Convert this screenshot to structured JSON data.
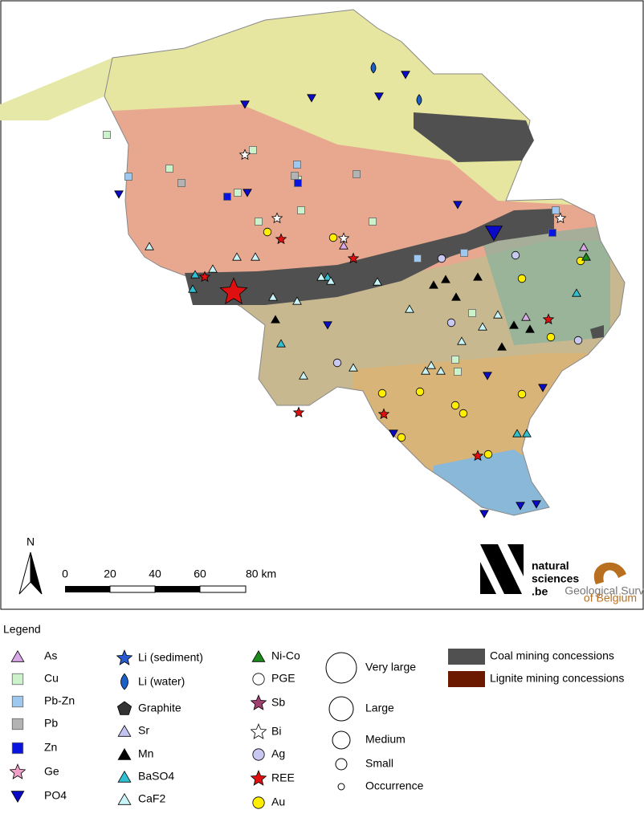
{
  "map": {
    "north": "N",
    "scale_labels": [
      "0",
      "20",
      "40",
      "60",
      "80 km"
    ]
  },
  "logos": {
    "natural_sciences": [
      "natural",
      "sciences",
      ".be"
    ],
    "geological_survey": [
      "Geological Survey",
      "of Belgium"
    ]
  },
  "legend": {
    "title": "Legend",
    "items": [
      {
        "label": "As",
        "symbol": "triangle",
        "color": "#d9a8e6"
      },
      {
        "label": "Cu",
        "symbol": "square",
        "color": "#ccf2cc"
      },
      {
        "label": "Pb-Zn",
        "symbol": "square",
        "color": "#9ec8f0"
      },
      {
        "label": "Pb",
        "symbol": "square",
        "color": "#b3b3b3"
      },
      {
        "label": "Zn",
        "symbol": "square",
        "color": "#0a14e0"
      },
      {
        "label": "Ge",
        "symbol": "star",
        "color": "#f0a0c8"
      },
      {
        "label": "PO4",
        "symbol": "down",
        "color": "#0a0ac8"
      },
      {
        "label": "Li (sediment)",
        "symbol": "star",
        "color": "#2a5ad0"
      },
      {
        "label": "Li (water)",
        "symbol": "drop",
        "color": "#1a60c8"
      },
      {
        "label": "Graphite",
        "symbol": "pentagon",
        "color": "#333333"
      },
      {
        "label": "Sr",
        "symbol": "triangle",
        "color": "#c4c4f0"
      },
      {
        "label": "Mn",
        "symbol": "triangle",
        "color": "#000000"
      },
      {
        "label": "BaSO4",
        "symbol": "triangle",
        "color": "#30c0d0"
      },
      {
        "label": "CaF2",
        "symbol": "triangle",
        "color": "#c8f4f8"
      },
      {
        "label": "Ni-Co",
        "symbol": "triangle",
        "color": "#1a8a1a"
      },
      {
        "label": "PGE",
        "symbol": "circle",
        "color": "#ffffff"
      },
      {
        "label": "Sb",
        "symbol": "star",
        "color": "#a04070"
      },
      {
        "label": "Bi",
        "symbol": "star",
        "color": "#ffffff"
      },
      {
        "label": "Ag",
        "symbol": "circle",
        "color": "#c8c8f0"
      },
      {
        "label": "REE",
        "symbol": "star",
        "color": "#e01010"
      },
      {
        "label": "Au",
        "symbol": "circle",
        "color": "#ffee00"
      }
    ],
    "sizes": [
      "Very large",
      "Large",
      "Medium",
      "Small",
      "Occurrence"
    ],
    "areas": [
      {
        "label": "Coal mining concessions",
        "color": "#505050"
      },
      {
        "label": "Lignite mining concessions",
        "color": "#6b1a00"
      }
    ]
  }
}
